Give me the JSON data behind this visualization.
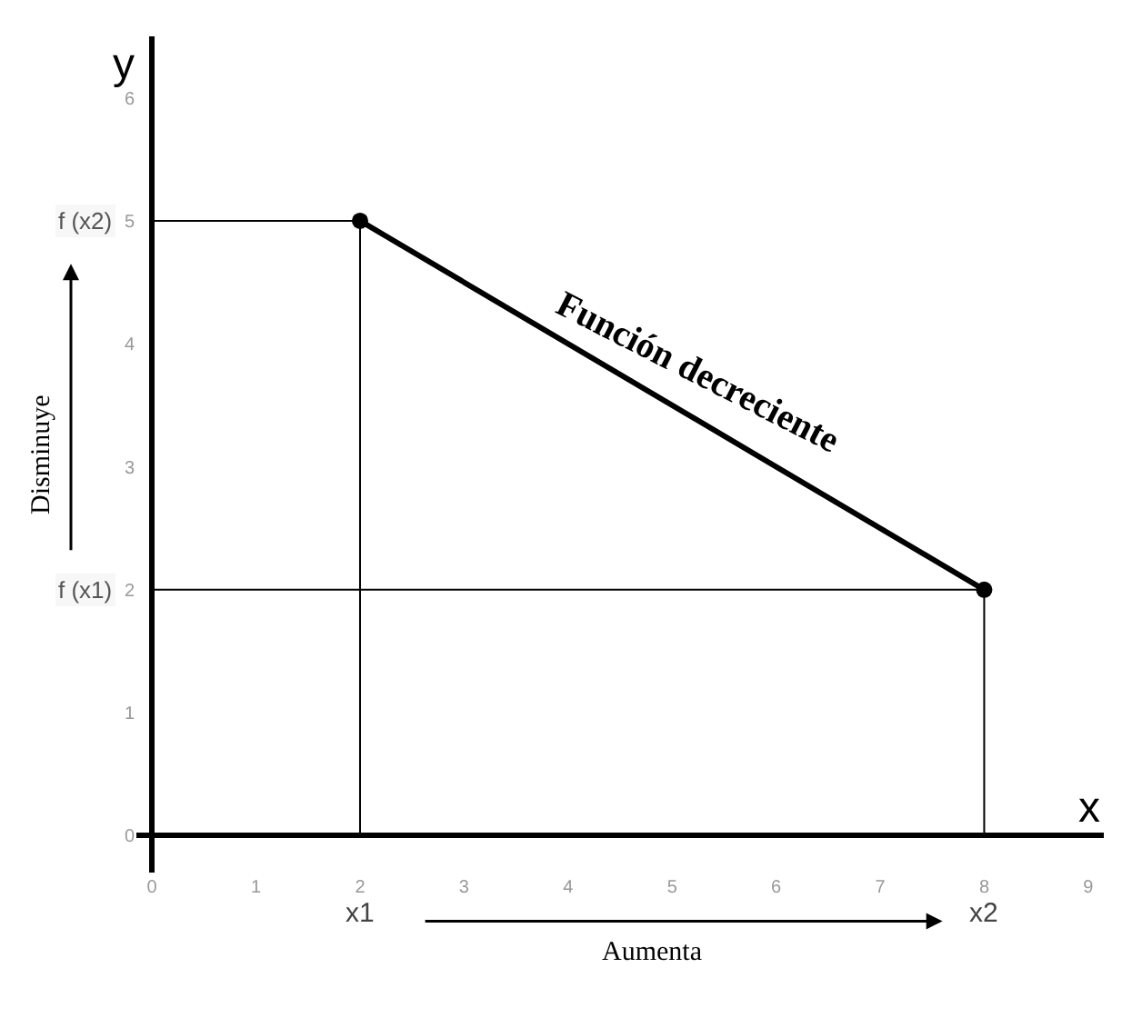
{
  "chart_data": {
    "type": "line",
    "xlabel": "x",
    "ylabel": "y",
    "series": [
      {
        "color": "#000000",
        "x": [
          2,
          8
        ],
        "values": [
          5,
          2
        ],
        "marker": "circle"
      },
      {
        "color": "#000000",
        "x": [
          0,
          2,
          2
        ],
        "values": [
          5,
          5,
          0
        ],
        "marker": "none"
      },
      {
        "color": "#000000",
        "x": [
          0,
          8,
          8
        ],
        "values": [
          2,
          2,
          0
        ],
        "marker": "none"
      }
    ],
    "xlim": [
      -0.15,
      9.15
    ],
    "ylim": [
      -0.3,
      6.5
    ],
    "xticks": [
      0,
      1,
      2,
      3,
      4,
      5,
      6,
      7,
      8,
      9
    ],
    "yticks": [
      0,
      1,
      2,
      3,
      4,
      5,
      6
    ],
    "annotations": [
      {
        "text": "Función decreciente",
        "x": 5,
        "y": 3.5
      },
      {
        "text": "x1",
        "x": 2,
        "y": 0
      },
      {
        "text": "x2",
        "x": 8,
        "y": 0
      },
      {
        "text": "f (x2)",
        "x": 0,
        "y": 5
      },
      {
        "text": "f (x1)",
        "x": 0,
        "y": 2
      },
      "Aumenta",
      "Disminuye"
    ]
  }
}
